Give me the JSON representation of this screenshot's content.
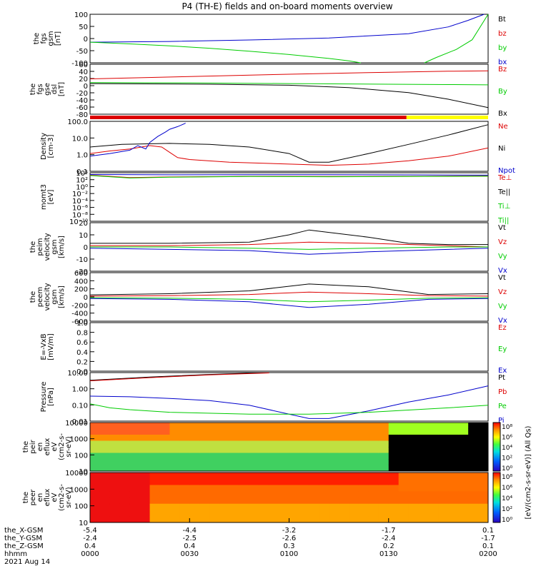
{
  "page_title": "P4 (TH-E) fields and on-board moments overview",
  "colors": {
    "black": "#000000",
    "red": "#dd0000",
    "green": "#00cc00",
    "blue": "#0000cc",
    "yellow": "#ffff00"
  },
  "chart_data": [
    {
      "type": "line",
      "name": "fgs-gsm",
      "ylabel_lines": [
        "the",
        "fgs",
        "gsm",
        "[nT]"
      ],
      "ylim": [
        -100,
        100
      ],
      "y_ticks": [
        "100",
        "50",
        "0",
        "-50",
        "-100"
      ],
      "legend": [
        {
          "label": "Bt",
          "color": "#000000"
        },
        {
          "label": "bz",
          "color": "#dd0000"
        },
        {
          "label": "by",
          "color": "#00cc00"
        },
        {
          "label": "bx",
          "color": "#0000cc"
        }
      ],
      "series": [
        {
          "label": "bx",
          "color": "#0000cc",
          "x": [
            0,
            20,
            40,
            60,
            80,
            90,
            95,
            99
          ],
          "y": [
            -15,
            -12,
            -6,
            2,
            20,
            48,
            75,
            100
          ]
        },
        {
          "label": "by",
          "color": "#00cc00",
          "x": [
            0,
            10,
            20,
            30,
            40,
            50,
            60,
            65,
            68,
            80,
            84,
            87,
            92,
            96,
            100
          ],
          "y": [
            -15,
            -22,
            -30,
            -40,
            -52,
            -66,
            -82,
            -92,
            -100,
            null,
            -100,
            -78,
            -45,
            -5,
            100
          ]
        }
      ]
    },
    {
      "type": "line",
      "name": "fgs-gse-dsl",
      "ylabel_lines": [
        "the",
        "fgs",
        "gse",
        "dsl",
        "[nT]"
      ],
      "ylim": [
        -90,
        60
      ],
      "y_ticks": [
        "60",
        "40",
        "20",
        "0",
        "-20",
        "-40",
        "-60",
        "-80"
      ],
      "legend": [
        {
          "label": "Bz",
          "color": "#dd0000"
        },
        {
          "label": "By",
          "color": "#00cc00"
        },
        {
          "label": "Bx",
          "color": "#000000"
        }
      ],
      "series": [
        {
          "label": "Bz",
          "color": "#dd0000",
          "x": [
            0,
            25,
            50,
            75,
            90,
            100
          ],
          "y": [
            16,
            23,
            30,
            36,
            39,
            40
          ]
        },
        {
          "label": "By",
          "color": "#00cc00",
          "x": [
            0,
            25,
            50,
            75,
            90,
            100
          ],
          "y": [
            5,
            4,
            2,
            0,
            -1,
            -2
          ]
        },
        {
          "label": "Bx",
          "color": "#000000",
          "x": [
            0,
            30,
            50,
            65,
            80,
            90,
            100
          ],
          "y": [
            2,
            0,
            -3,
            -10,
            -25,
            -45,
            -70
          ]
        }
      ]
    },
    {
      "type": "line",
      "name": "density",
      "ylabel_lines": [
        "Density",
        "[cm-3]"
      ],
      "scale": "log",
      "ylim": [
        0.1,
        200
      ],
      "y_ticks": [
        "100.0",
        "10.0",
        "1.0",
        "0.1"
      ],
      "legend": [
        {
          "label": "Ne",
          "color": "#dd0000"
        },
        {
          "label": "Ni",
          "color": "#000000"
        },
        {
          "label": "Npot",
          "color": "#0000cc"
        }
      ],
      "series": [
        {
          "label": "Ni",
          "color": "#000000",
          "x": [
            0,
            8,
            20,
            30,
            40,
            50,
            55,
            60,
            70,
            80,
            90,
            100
          ],
          "y": [
            4,
            6,
            7,
            6,
            4,
            1.5,
            0.4,
            0.4,
            1.5,
            6,
            25,
            120
          ]
        },
        {
          "label": "Ne",
          "color": "#dd0000",
          "x": [
            0,
            5,
            10,
            15,
            18,
            20,
            22,
            25,
            35,
            50,
            60,
            70,
            80,
            90,
            100
          ],
          "y": [
            1.5,
            2.2,
            3,
            5,
            4,
            1.8,
            0.8,
            0.6,
            0.4,
            0.3,
            0.25,
            0.3,
            0.5,
            1.0,
            3.5
          ]
        },
        {
          "label": "Npot",
          "color": "#0000cc",
          "x": [
            0,
            5,
            10,
            12,
            14,
            15,
            17,
            19,
            20,
            22,
            24
          ],
          "y": [
            1,
            1.5,
            2.5,
            5,
            3,
            8,
            20,
            40,
            60,
            90,
            150
          ]
        }
      ]
    },
    {
      "type": "line",
      "name": "moms-temperature",
      "ylabel_lines": [
        "momt3",
        "[eV]"
      ],
      "scale": "log",
      "ylim": [
        1e-10,
        10000.0
      ],
      "y_ticks": [
        "10⁴",
        "10²",
        "10⁰",
        "10⁻²",
        "10⁻⁴",
        "10⁻⁶",
        "10⁻⁸",
        "10⁻¹⁰"
      ],
      "legend": [
        {
          "label": "Te⊥",
          "color": "#dd0000"
        },
        {
          "label": "Te||",
          "color": "#000000"
        },
        {
          "label": "Ti⊥",
          "color": "#00cc00"
        },
        {
          "label": "Ti||",
          "color": "#00cc00"
        }
      ],
      "series": [
        {
          "label": "Te",
          "color": "#dd0000",
          "x": [
            0,
            10,
            20,
            40,
            60,
            80,
            100
          ],
          "y": [
            2000,
            400,
            600,
            900,
            800,
            900,
            1200
          ]
        },
        {
          "label": "Ti",
          "color": "#00cc00",
          "x": [
            0,
            10,
            20,
            40,
            60,
            80,
            100
          ],
          "y": [
            1500,
            300,
            500,
            800,
            700,
            800,
            1000
          ]
        },
        {
          "label": "Tperp",
          "color": "#0000cc",
          "x": [
            0,
            20,
            40,
            60,
            80,
            100
          ],
          "y": [
            3000,
            2500,
            2800,
            2600,
            2400,
            2000
          ]
        }
      ]
    },
    {
      "type": "line",
      "name": "peim-velocity",
      "ylabel_lines": [
        "the",
        "peim",
        "velocity",
        "gsm",
        "[km/s]"
      ],
      "ylim": [
        -20,
        20
      ],
      "y_ticks": [
        "20",
        "10",
        "0",
        "-10",
        "-20"
      ],
      "legend": [
        {
          "label": "Vt",
          "color": "#000000"
        },
        {
          "label": "Vz",
          "color": "#dd0000"
        },
        {
          "label": "Vy",
          "color": "#00cc00"
        },
        {
          "label": "Vx",
          "color": "#0000cc"
        }
      ],
      "series": [
        {
          "label": "Vt",
          "color": "#000000",
          "x": [
            0,
            20,
            40,
            50,
            55,
            60,
            70,
            80,
            90,
            100
          ],
          "y": [
            3,
            3,
            4,
            10,
            14,
            12,
            8,
            3,
            2,
            2
          ]
        },
        {
          "label": "Vz",
          "color": "#dd0000",
          "x": [
            0,
            20,
            40,
            55,
            70,
            90,
            100
          ],
          "y": [
            1,
            1,
            2,
            4,
            3,
            1,
            0
          ]
        },
        {
          "label": "Vy",
          "color": "#00cc00",
          "x": [
            0,
            20,
            40,
            55,
            70,
            90,
            100
          ],
          "y": [
            0,
            0,
            -1,
            -2,
            -1,
            0,
            0
          ]
        },
        {
          "label": "Vx",
          "color": "#0000cc",
          "x": [
            0,
            20,
            40,
            55,
            70,
            90,
            100
          ],
          "y": [
            -1,
            -2,
            -3,
            -6,
            -4,
            -2,
            -1
          ]
        }
      ]
    },
    {
      "type": "line",
      "name": "peem-velocity",
      "ylabel_lines": [
        "the",
        "peem",
        "velocity",
        "gsm",
        "[km/s]"
      ],
      "ylim": [
        -600,
        600
      ],
      "y_ticks": [
        "600",
        "400",
        "200",
        "0",
        "-200",
        "-400",
        "-600"
      ],
      "legend": [
        {
          "label": "Vt",
          "color": "#000000"
        },
        {
          "label": "Vz",
          "color": "#dd0000"
        },
        {
          "label": "Vy",
          "color": "#00cc00"
        },
        {
          "label": "Vx",
          "color": "#0000cc"
        }
      ],
      "series": [
        {
          "label": "Vt",
          "color": "#000000",
          "x": [
            0,
            20,
            40,
            55,
            70,
            85,
            100
          ],
          "y": [
            50,
            80,
            150,
            320,
            250,
            60,
            80
          ]
        },
        {
          "label": "Vz",
          "color": "#dd0000",
          "x": [
            0,
            20,
            40,
            55,
            70,
            85,
            100
          ],
          "y": [
            20,
            30,
            60,
            120,
            80,
            30,
            20
          ]
        },
        {
          "label": "Vy",
          "color": "#00cc00",
          "x": [
            0,
            20,
            40,
            55,
            70,
            85,
            100
          ],
          "y": [
            -20,
            -30,
            -60,
            -120,
            -80,
            -30,
            -20
          ]
        },
        {
          "label": "Vx",
          "color": "#0000cc",
          "x": [
            0,
            20,
            40,
            55,
            70,
            85,
            100
          ],
          "y": [
            -40,
            -60,
            -120,
            -260,
            -180,
            -60,
            -40
          ]
        }
      ]
    },
    {
      "type": "line",
      "name": "efield",
      "ylabel_lines": [
        "E=-VxB",
        "[mV/m]"
      ],
      "ylim": [
        0,
        1
      ],
      "y_ticks": [
        "1.0",
        "0.8",
        "0.6",
        "0.4",
        "0.2",
        "0.0"
      ],
      "legend": [
        {
          "label": "Ez",
          "color": "#dd0000"
        },
        {
          "label": "Ey",
          "color": "#00cc00"
        },
        {
          "label": "Ex",
          "color": "#0000cc"
        }
      ],
      "series": []
    },
    {
      "type": "line",
      "name": "pressure",
      "ylabel_lines": [
        "Pressure",
        "[nPa]"
      ],
      "scale": "log",
      "ylim": [
        0.01,
        20
      ],
      "y_ticks": [
        "10.00",
        "1.00",
        "0.10",
        "0.01"
      ],
      "legend": [
        {
          "label": "Pt",
          "color": "#000000"
        },
        {
          "label": "Pb",
          "color": "#dd0000"
        },
        {
          "label": "Pe",
          "color": "#00cc00"
        },
        {
          "label": "Pi",
          "color": "#0000cc"
        }
      ],
      "series": [
        {
          "label": "Pt",
          "color": "#000000",
          "x": [
            0,
            15,
            30,
            45
          ],
          "y": [
            6,
            10,
            15,
            20
          ]
        },
        {
          "label": "Pb",
          "color": "#dd0000",
          "x": [
            0,
            15,
            30,
            45
          ],
          "y": [
            5.5,
            9,
            14,
            19
          ]
        },
        {
          "label": "Pi",
          "color": "#0000cc",
          "x": [
            0,
            10,
            20,
            30,
            40,
            50,
            55,
            60,
            70,
            80,
            90,
            100
          ],
          "y": [
            0.5,
            0.45,
            0.35,
            0.25,
            0.12,
            0.03,
            0.015,
            0.015,
            0.05,
            0.2,
            0.6,
            2.5
          ]
        },
        {
          "label": "Pe",
          "color": "#00cc00",
          "x": [
            0,
            5,
            10,
            20,
            40,
            55,
            70,
            90,
            100
          ],
          "y": [
            0.15,
            0.08,
            0.06,
            0.04,
            0.03,
            0.03,
            0.04,
            0.08,
            0.12
          ]
        }
      ]
    },
    {
      "type": "heatmap",
      "name": "peir-eflux",
      "ylabel_lines": [
        "the",
        "peir",
        "en",
        "eflux",
        "eV",
        "(cm2-s-",
        "sr-eV)"
      ],
      "scale": "log",
      "ylim": [
        5,
        25000
      ],
      "y_ticks": [
        "10000",
        "1000",
        "100",
        "10"
      ]
    },
    {
      "type": "heatmap",
      "name": "peer-eflux",
      "ylabel_lines": [
        "the",
        "peer",
        "en",
        "eflux",
        "eV",
        "(cm2-s-",
        "sr-eV)"
      ],
      "scale": "log",
      "ylim": [
        5,
        25000
      ],
      "y_ticks": [
        "10000",
        "1000",
        "100",
        "10"
      ]
    }
  ],
  "colorbar": {
    "label": "[eV/(cm2-s-sr-eV)] (All Qs)",
    "top_ticks": [
      "10⁸",
      "10⁶",
      "10⁴",
      "10²",
      "10⁰"
    ],
    "bottom_ticks": [
      "10⁸",
      "10⁶",
      "10⁴",
      "10²",
      "10⁰"
    ]
  },
  "x_axis": {
    "row_labels": [
      "the_X-GSM",
      "the_Y-GSM",
      "the_Z-GSM",
      "hhmm",
      "2021 Aug 14"
    ],
    "ticks": [
      {
        "x": 0,
        "values": [
          "-5.4",
          "-2.4",
          "0.4",
          "0000"
        ]
      },
      {
        "x": 25,
        "values": [
          "-4.4",
          "-2.5",
          "0.4",
          "0030"
        ]
      },
      {
        "x": 50,
        "values": [
          "-3.2",
          "-2.6",
          "0.3",
          "0100"
        ]
      },
      {
        "x": 75,
        "values": [
          "-1.7",
          "-2.4",
          "0.2",
          "0130"
        ]
      },
      {
        "x": 100,
        "values": [
          "0.1",
          "-1.7",
          "0.1",
          "0200"
        ]
      }
    ]
  }
}
